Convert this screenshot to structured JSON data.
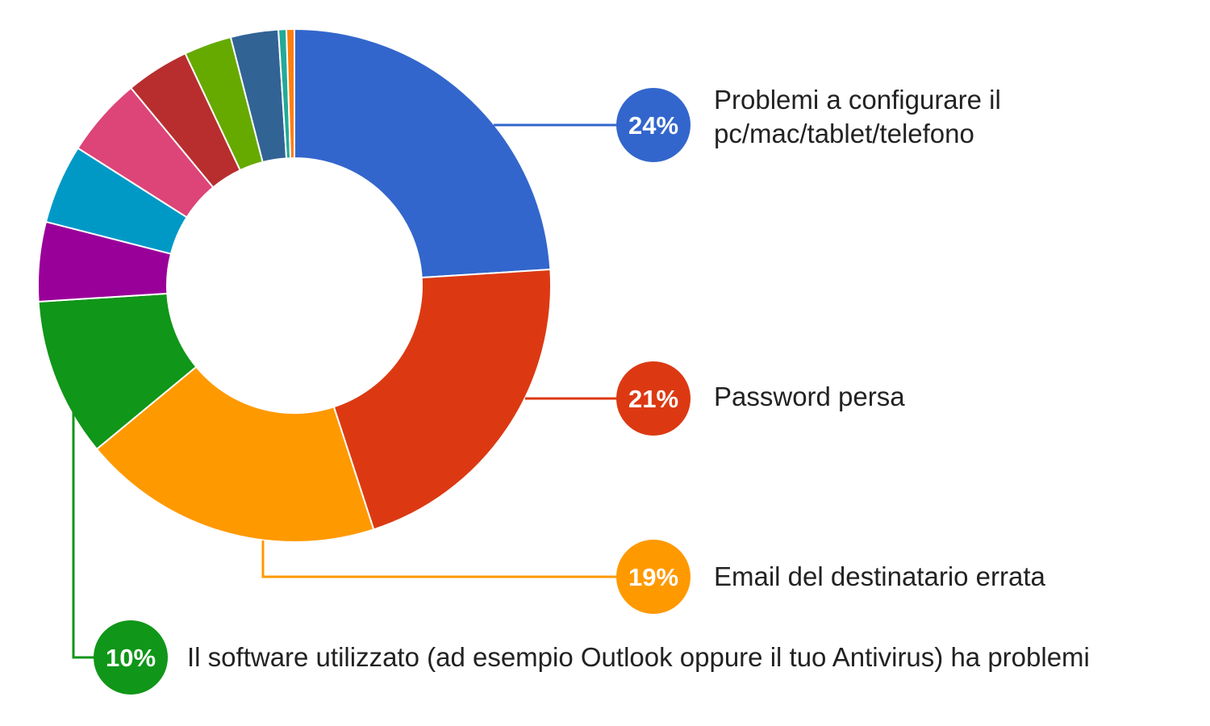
{
  "chart_data": {
    "type": "pie",
    "variant": "donut",
    "title": "",
    "slices": [
      {
        "label": "Problemi a configurare il pc/mac/tablet/telefono",
        "value": 24,
        "color": "#3366cc"
      },
      {
        "label": "Password persa",
        "value": 21,
        "color": "#dc3912"
      },
      {
        "label": "Email del destinatario errata",
        "value": 19,
        "color": "#ff9900"
      },
      {
        "label": "Il software utilizzato (ad esempio Outlook oppure il tuo Antivirus) ha problemi",
        "value": 10,
        "color": "#109618"
      },
      {
        "label": "",
        "value": 5,
        "color": "#990099"
      },
      {
        "label": "",
        "value": 5,
        "color": "#0099c6"
      },
      {
        "label": "",
        "value": 5,
        "color": "#dd4477"
      },
      {
        "label": "",
        "value": 4,
        "color": "#b82e2e"
      },
      {
        "label": "",
        "value": 3,
        "color": "#66aa00"
      },
      {
        "label": "",
        "value": 3,
        "color": "#316395"
      },
      {
        "label": "",
        "value": 0.5,
        "color": "#22aa99"
      },
      {
        "label": "",
        "value": 0.5,
        "color": "#ff7f0e"
      }
    ],
    "callouts": [
      {
        "slice": 0,
        "percent_label": "24%",
        "text_lines": [
          "Problemi a configurare il",
          "pc/mac/tablet/telefono"
        ]
      },
      {
        "slice": 1,
        "percent_label": "21%",
        "text_lines": [
          "Password persa"
        ]
      },
      {
        "slice": 2,
        "percent_label": "19%",
        "text_lines": [
          "Email del destinatario errata"
        ]
      },
      {
        "slice": 3,
        "percent_label": "10%",
        "text_lines": [
          "Il software utilizzato (ad esempio Outlook oppure il tuo Antivirus) ha problemi"
        ]
      }
    ]
  }
}
